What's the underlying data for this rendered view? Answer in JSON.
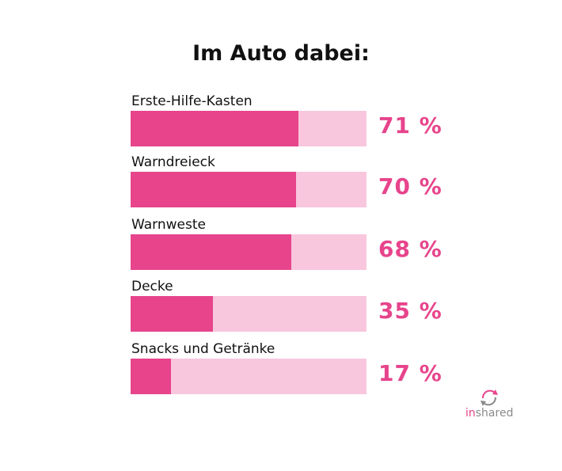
{
  "title": "Im Auto dabei:",
  "colors": {
    "bar_fill": "#e7448c",
    "bar_track": "#f8c6dd",
    "value_text": "#e7448c",
    "logo_in": "#e7448c",
    "logo_shared": "#8a8a8a"
  },
  "chart_data": {
    "type": "bar",
    "orientation": "horizontal",
    "title": "Im Auto dabei:",
    "categories": [
      "Erste-Hilfe-Kasten",
      "Warndreieck",
      "Warnweste",
      "Decke",
      "Snacks und Getränke"
    ],
    "values": [
      71,
      70,
      68,
      35,
      17
    ],
    "value_labels": [
      "71 %",
      "70 %",
      "68 %",
      "35 %",
      "17 %"
    ],
    "xlim": [
      0,
      100
    ],
    "unit": "%",
    "grid": false,
    "legend": "none"
  },
  "logo": {
    "part_in": "in",
    "part_shared": "shared",
    "icon": "recycle-arrows-icon"
  }
}
